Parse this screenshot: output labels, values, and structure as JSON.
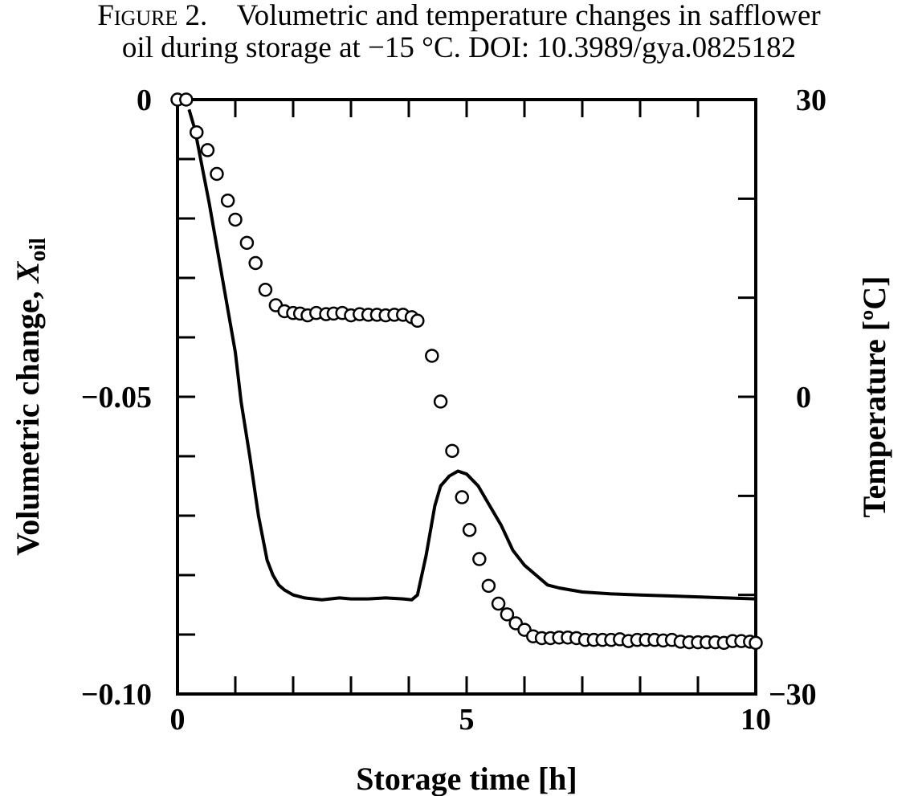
{
  "caption": {
    "figure_label": "Figure 2.",
    "text_line1": "Volumetric and temperature changes in safflower",
    "text_line2": "oil during storage at −15 °C.  DOI: 10.3989/gya.0825182"
  },
  "chart_data": {
    "type": "scatter",
    "title": "",
    "xlabel": "Storage time [h]",
    "ylabel_left": "Volumetric change, ",
    "ylabel_left_var": "X",
    "ylabel_left_sub": "oil",
    "ylabel_right": "Temperature [ºC]",
    "xlim": [
      0,
      10
    ],
    "ylim_left": [
      -0.1,
      0
    ],
    "ylim_right": [
      -30,
      30
    ],
    "x_tick_labels": [
      {
        "value": 0,
        "label": "0"
      },
      {
        "value": 5,
        "label": "5"
      },
      {
        "value": 10,
        "label": "10"
      }
    ],
    "y_left_tick_labels": [
      {
        "value": 0,
        "label": "0"
      },
      {
        "value": -0.05,
        "label": "−0.05"
      },
      {
        "value": -0.1,
        "label": "−0.10"
      }
    ],
    "y_right_tick_labels": [
      {
        "value": 30,
        "label": "30"
      },
      {
        "value": 0,
        "label": "0"
      },
      {
        "value": -30,
        "label": "−30"
      }
    ],
    "grid": false,
    "series": [
      {
        "axis": "left",
        "marker": "open-circle",
        "x": [
          0.0,
          0.15,
          0.33,
          0.52,
          0.68,
          0.87,
          1.0,
          1.2,
          1.35,
          1.52,
          1.7,
          1.85,
          2.0,
          2.12,
          2.25,
          2.4,
          2.57,
          2.7,
          2.85,
          3.0,
          3.15,
          3.3,
          3.45,
          3.6,
          3.75,
          3.9,
          4.05,
          4.15,
          4.4,
          4.55,
          4.75,
          4.92,
          5.05,
          5.22,
          5.38,
          5.55,
          5.7,
          5.85,
          6.0,
          6.15,
          6.3,
          6.45,
          6.6,
          6.75,
          6.9,
          7.05,
          7.2,
          7.35,
          7.5,
          7.65,
          7.8,
          7.95,
          8.1,
          8.25,
          8.4,
          8.55,
          8.7,
          8.85,
          9.0,
          9.15,
          9.3,
          9.45,
          9.6,
          9.75,
          9.9,
          10.0
        ],
        "y": [
          0.0,
          0.0,
          -0.0055,
          -0.0085,
          -0.0125,
          -0.017,
          -0.0202,
          -0.0241,
          -0.0275,
          -0.032,
          -0.0346,
          -0.0356,
          -0.0359,
          -0.036,
          -0.0363,
          -0.0359,
          -0.0361,
          -0.036,
          -0.0359,
          -0.0363,
          -0.0361,
          -0.0362,
          -0.0362,
          -0.0363,
          -0.0362,
          -0.0362,
          -0.0366,
          -0.0372,
          -0.0431,
          -0.0508,
          -0.0591,
          -0.0669,
          -0.0724,
          -0.0773,
          -0.0818,
          -0.0848,
          -0.0866,
          -0.0881,
          -0.0892,
          -0.0903,
          -0.0906,
          -0.0906,
          -0.0905,
          -0.0905,
          -0.0906,
          -0.0909,
          -0.0909,
          -0.0909,
          -0.0909,
          -0.0908,
          -0.0911,
          -0.0909,
          -0.0909,
          -0.0909,
          -0.091,
          -0.0909,
          -0.0912,
          -0.0913,
          -0.0913,
          -0.0913,
          -0.0913,
          -0.0914,
          -0.0911,
          -0.0911,
          -0.0912,
          -0.0914
        ]
      },
      {
        "axis": "right",
        "style": "solid-line",
        "x": [
          0.2,
          0.3,
          0.4,
          0.55,
          0.7,
          0.85,
          1.0,
          1.1,
          1.25,
          1.4,
          1.55,
          1.65,
          1.75,
          1.85,
          2.0,
          2.2,
          2.5,
          2.8,
          3.0,
          3.3,
          3.6,
          3.9,
          4.05,
          4.15,
          4.3,
          4.45,
          4.55,
          4.7,
          4.85,
          5.0,
          5.2,
          5.4,
          5.6,
          5.8,
          6.0,
          6.2,
          6.4,
          6.6,
          6.8,
          7.0,
          7.5,
          8.0,
          8.5,
          9.0,
          9.5,
          10.0
        ],
        "y": [
          29.0,
          27.0,
          24.0,
          19.5,
          14.5,
          9.5,
          4.5,
          -0.5,
          -6.0,
          -12.0,
          -16.5,
          -18.0,
          -19.0,
          -19.5,
          -20.0,
          -20.3,
          -20.5,
          -20.3,
          -20.4,
          -20.4,
          -20.3,
          -20.4,
          -20.5,
          -20.0,
          -16.0,
          -11.0,
          -9.0,
          -8.0,
          -7.5,
          -7.8,
          -9.0,
          -11.0,
          -13.0,
          -15.5,
          -17.0,
          -18.0,
          -19.0,
          -19.3,
          -19.5,
          -19.7,
          -19.9,
          -20.0,
          -20.1,
          -20.2,
          -20.3,
          -20.4
        ]
      }
    ]
  }
}
